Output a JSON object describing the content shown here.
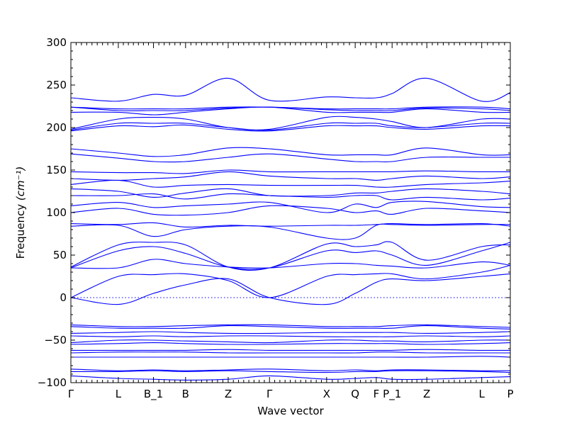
{
  "chart_data": {
    "type": "line",
    "title": "",
    "xlabel": "Wave vector",
    "ylabel": "Frequency ",
    "ylabel_unit": "(cm⁻¹)",
    "ylim": [
      -100,
      300
    ],
    "yticks": [
      -100,
      -50,
      0,
      50,
      100,
      150,
      200,
      250,
      300
    ],
    "ytick_labels": [
      "−100",
      "−50",
      "0",
      "50",
      "100",
      "150",
      "200",
      "250",
      "300"
    ],
    "xlim": [
      0,
      1
    ],
    "high_symmetry_points": [
      {
        "label": "Γ",
        "x": 0.0
      },
      {
        "label": "L",
        "x": 0.108
      },
      {
        "label": "B_1",
        "x": 0.188
      },
      {
        "label": "B",
        "x": 0.261
      },
      {
        "label": "Z",
        "x": 0.358
      },
      {
        "label": "Γ",
        "x": 0.452
      },
      {
        "label": "X",
        "x": 0.582
      },
      {
        "label": "Q",
        "x": 0.647
      },
      {
        "label": "F",
        "x": 0.695
      },
      {
        "label": "P_1",
        "x": 0.731
      },
      {
        "label": "Z",
        "x": 0.81
      },
      {
        "label": "L",
        "x": 0.935
      },
      {
        "label": "P",
        "x": 1.0
      }
    ],
    "zero_line": 0,
    "series_color": "#0000ff",
    "series": [
      {
        "x": [
          0,
          0.108,
          0.188,
          0.261,
          0.358,
          0.452,
          0.582,
          0.647,
          0.695,
          0.731,
          0.81,
          0.935,
          1.0
        ],
        "values": [
          0,
          -8,
          5,
          15,
          22,
          0,
          -8,
          5,
          18,
          22,
          20,
          25,
          28
        ]
      },
      {
        "x": [
          0,
          0.108,
          0.188,
          0.261,
          0.358,
          0.452,
          0.582,
          0.647,
          0.695,
          0.731,
          0.81,
          0.935,
          1.0
        ],
        "values": [
          0,
          25,
          27,
          28,
          20,
          0,
          25,
          27,
          28,
          28,
          22,
          30,
          38
        ]
      },
      {
        "x": [
          0,
          0.108,
          0.188,
          0.261,
          0.358,
          0.452,
          0.582,
          0.647,
          0.695,
          0.731,
          0.81,
          0.935,
          1.0
        ],
        "values": [
          35,
          35,
          45,
          40,
          36,
          35,
          40,
          40,
          38,
          37,
          35,
          42,
          38
        ]
      },
      {
        "x": [
          0,
          0.108,
          0.188,
          0.261,
          0.358,
          0.452,
          0.582,
          0.647,
          0.695,
          0.731,
          0.81,
          0.935,
          1.0
        ],
        "values": [
          35,
          55,
          60,
          52,
          36,
          35,
          55,
          53,
          55,
          50,
          38,
          55,
          65
        ]
      },
      {
        "x": [
          0,
          0.108,
          0.188,
          0.261,
          0.358,
          0.452,
          0.582,
          0.647,
          0.695,
          0.731,
          0.81,
          0.935,
          1.0
        ],
        "values": [
          36,
          62,
          65,
          62,
          36,
          35,
          63,
          60,
          62,
          65,
          44,
          60,
          62
        ]
      },
      {
        "x": [
          0,
          0.108,
          0.188,
          0.261,
          0.358,
          0.452,
          0.582,
          0.647,
          0.695,
          0.731,
          0.81,
          0.935,
          1.0
        ],
        "values": [
          84,
          85,
          72,
          80,
          84,
          83,
          70,
          70,
          85,
          86,
          85,
          86,
          86
        ]
      },
      {
        "x": [
          0,
          0.108,
          0.188,
          0.261,
          0.358,
          0.452,
          0.582,
          0.647,
          0.695,
          0.731,
          0.81,
          0.935,
          1.0
        ],
        "values": [
          87,
          86,
          88,
          83,
          85,
          84,
          85,
          85,
          86,
          87,
          86,
          87,
          84
        ]
      },
      {
        "x": [
          0,
          0.108,
          0.188,
          0.261,
          0.358,
          0.452,
          0.582,
          0.647,
          0.695,
          0.731,
          0.81,
          0.935,
          1.0
        ],
        "values": [
          100,
          105,
          98,
          97,
          100,
          108,
          105,
          100,
          102,
          98,
          105,
          102,
          100
        ]
      },
      {
        "x": [
          0,
          0.108,
          0.188,
          0.261,
          0.358,
          0.452,
          0.582,
          0.647,
          0.695,
          0.731,
          0.81,
          0.935,
          1.0
        ],
        "values": [
          108,
          112,
          106,
          108,
          110,
          112,
          100,
          110,
          106,
          112,
          113,
          107,
          106
        ]
      },
      {
        "x": [
          0,
          0.108,
          0.188,
          0.261,
          0.358,
          0.452,
          0.582,
          0.647,
          0.695,
          0.731,
          0.81,
          0.935,
          1.0
        ],
        "values": [
          120,
          120,
          122,
          116,
          122,
          120,
          118,
          120,
          120,
          115,
          118,
          115,
          117
        ]
      },
      {
        "x": [
          0,
          0.108,
          0.188,
          0.261,
          0.358,
          0.452,
          0.582,
          0.647,
          0.695,
          0.731,
          0.81,
          0.935,
          1.0
        ],
        "values": [
          128,
          125,
          118,
          123,
          128,
          120,
          120,
          123,
          123,
          125,
          128,
          125,
          122
        ]
      },
      {
        "x": [
          0,
          0.108,
          0.188,
          0.261,
          0.358,
          0.452,
          0.582,
          0.647,
          0.695,
          0.731,
          0.81,
          0.935,
          1.0
        ],
        "values": [
          133,
          138,
          130,
          132,
          133,
          132,
          132,
          132,
          130,
          130,
          133,
          135,
          137
        ]
      },
      {
        "x": [
          0,
          0.108,
          0.188,
          0.261,
          0.358,
          0.452,
          0.582,
          0.647,
          0.695,
          0.731,
          0.81,
          0.935,
          1.0
        ],
        "values": [
          140,
          138,
          140,
          142,
          148,
          143,
          140,
          140,
          138,
          140,
          143,
          140,
          142
        ]
      },
      {
        "x": [
          0,
          0.108,
          0.188,
          0.261,
          0.358,
          0.452,
          0.582,
          0.647,
          0.695,
          0.731,
          0.81,
          0.935,
          1.0
        ],
        "values": [
          148,
          147,
          147,
          146,
          150,
          148,
          148,
          148,
          148,
          148,
          149,
          148,
          148
        ]
      },
      {
        "x": [
          0,
          0.108,
          0.188,
          0.261,
          0.358,
          0.452,
          0.582,
          0.647,
          0.695,
          0.731,
          0.81,
          0.935,
          1.0
        ],
        "values": [
          169,
          164,
          160,
          160,
          165,
          169,
          163,
          160,
          160,
          160,
          165,
          165,
          165
        ]
      },
      {
        "x": [
          0,
          0.108,
          0.188,
          0.261,
          0.358,
          0.452,
          0.582,
          0.647,
          0.695,
          0.731,
          0.81,
          0.935,
          1.0
        ],
        "values": [
          175,
          170,
          166,
          168,
          176,
          175,
          168,
          168,
          168,
          168,
          176,
          168,
          168
        ]
      },
      {
        "x": [
          0,
          0.108,
          0.188,
          0.261,
          0.358,
          0.452,
          0.582,
          0.647,
          0.695,
          0.731,
          0.81,
          0.935,
          1.0
        ],
        "values": [
          196,
          202,
          201,
          203,
          198,
          196,
          202,
          202,
          202,
          200,
          198,
          202,
          202
        ]
      },
      {
        "x": [
          0,
          0.108,
          0.188,
          0.261,
          0.358,
          0.452,
          0.582,
          0.647,
          0.695,
          0.731,
          0.81,
          0.935,
          1.0
        ],
        "values": [
          197,
          205,
          205,
          205,
          200,
          197,
          205,
          205,
          205,
          202,
          200,
          205,
          205
        ]
      },
      {
        "x": [
          0,
          0.108,
          0.188,
          0.261,
          0.358,
          0.452,
          0.582,
          0.647,
          0.695,
          0.731,
          0.81,
          0.935,
          1.0
        ],
        "values": [
          198,
          210,
          212,
          210,
          200,
          198,
          212,
          212,
          210,
          207,
          200,
          210,
          210
        ]
      },
      {
        "x": [
          0,
          0.108,
          0.188,
          0.261,
          0.358,
          0.452,
          0.582,
          0.647,
          0.695,
          0.731,
          0.81,
          0.935,
          1.0
        ],
        "values": [
          218,
          218,
          215,
          218,
          222,
          224,
          218,
          218,
          218,
          218,
          222,
          218,
          218
        ]
      },
      {
        "x": [
          0,
          0.108,
          0.188,
          0.261,
          0.358,
          0.452,
          0.582,
          0.647,
          0.695,
          0.731,
          0.81,
          0.935,
          1.0
        ],
        "values": [
          224,
          220,
          220,
          220,
          223,
          224,
          221,
          220,
          220,
          220,
          223,
          222,
          220
        ]
      },
      {
        "x": [
          0,
          0.108,
          0.188,
          0.261,
          0.358,
          0.452,
          0.582,
          0.647,
          0.695,
          0.731,
          0.81,
          0.935,
          1.0
        ],
        "values": [
          224,
          222,
          222,
          222,
          224,
          224,
          222,
          222,
          222,
          222,
          224,
          224,
          222
        ]
      },
      {
        "x": [
          0,
          0.108,
          0.188,
          0.261,
          0.358,
          0.452,
          0.582,
          0.647,
          0.695,
          0.731,
          0.81,
          0.935,
          1.0
        ],
        "values": [
          235,
          231,
          239,
          238,
          258,
          232,
          236,
          235,
          235,
          240,
          258,
          231,
          241
        ]
      },
      {
        "x": [
          0,
          0.108,
          0.188,
          0.261,
          0.358,
          0.452,
          0.582,
          0.647,
          0.695,
          0.731,
          0.81,
          0.935,
          1.0
        ],
        "values": [
          -32,
          -34,
          -34,
          -33,
          -32,
          -32,
          -34,
          -34,
          -34,
          -33,
          -32,
          -34,
          -35
        ]
      },
      {
        "x": [
          0,
          0.108,
          0.188,
          0.261,
          0.358,
          0.452,
          0.582,
          0.647,
          0.695,
          0.731,
          0.81,
          0.935,
          1.0
        ],
        "values": [
          -34,
          -36,
          -36,
          -36,
          -33,
          -34,
          -36,
          -36,
          -36,
          -36,
          -33,
          -36,
          -37
        ]
      },
      {
        "x": [
          0,
          0.108,
          0.188,
          0.261,
          0.358,
          0.452,
          0.582,
          0.647,
          0.695,
          0.731,
          0.81,
          0.935,
          1.0
        ],
        "values": [
          -42,
          -41,
          -40,
          -41,
          -42,
          -42,
          -41,
          -41,
          -41,
          -41,
          -42,
          -41,
          -40
        ]
      },
      {
        "x": [
          0,
          0.108,
          0.188,
          0.261,
          0.358,
          0.452,
          0.582,
          0.647,
          0.695,
          0.731,
          0.81,
          0.935,
          1.0
        ],
        "values": [
          -45,
          -46,
          -45,
          -46,
          -45,
          -45,
          -46,
          -46,
          -46,
          -46,
          -45,
          -46,
          -45
        ]
      },
      {
        "x": [
          0,
          0.108,
          0.188,
          0.261,
          0.358,
          0.452,
          0.582,
          0.647,
          0.695,
          0.731,
          0.81,
          0.935,
          1.0
        ],
        "values": [
          -53,
          -50,
          -50,
          -51,
          -52,
          -53,
          -50,
          -50,
          -51,
          -51,
          -52,
          -50,
          -50
        ]
      },
      {
        "x": [
          0,
          0.108,
          0.188,
          0.261,
          0.358,
          0.452,
          0.582,
          0.647,
          0.695,
          0.731,
          0.81,
          0.935,
          1.0
        ],
        "values": [
          -55,
          -54,
          -53,
          -54,
          -55,
          -55,
          -54,
          -54,
          -54,
          -54,
          -55,
          -54,
          -53
        ]
      },
      {
        "x": [
          0,
          0.108,
          0.188,
          0.261,
          0.358,
          0.452,
          0.582,
          0.647,
          0.695,
          0.731,
          0.81,
          0.935,
          1.0
        ],
        "values": [
          -62,
          -62,
          -62,
          -62,
          -61,
          -62,
          -62,
          -62,
          -62,
          -62,
          -61,
          -62,
          -62
        ]
      },
      {
        "x": [
          0,
          0.108,
          0.188,
          0.261,
          0.358,
          0.452,
          0.582,
          0.647,
          0.695,
          0.731,
          0.81,
          0.935,
          1.0
        ],
        "values": [
          -65,
          -64,
          -64,
          -64,
          -65,
          -65,
          -65,
          -65,
          -64,
          -64,
          -65,
          -65,
          -65
        ]
      },
      {
        "x": [
          0,
          0.108,
          0.188,
          0.261,
          0.358,
          0.452,
          0.582,
          0.647,
          0.695,
          0.731,
          0.81,
          0.935,
          1.0
        ],
        "values": [
          -70,
          -70,
          -70,
          -70,
          -70,
          -70,
          -70,
          -70,
          -70,
          -70,
          -70,
          -69,
          -70
        ]
      },
      {
        "x": [
          0,
          0.108,
          0.188,
          0.261,
          0.358,
          0.452,
          0.582,
          0.647,
          0.695,
          0.731,
          0.81,
          0.935,
          1.0
        ],
        "values": [
          -84,
          -86,
          -85,
          -86,
          -85,
          -84,
          -86,
          -85,
          -86,
          -85,
          -85,
          -86,
          -86
        ]
      },
      {
        "x": [
          0,
          0.108,
          0.188,
          0.261,
          0.358,
          0.452,
          0.582,
          0.647,
          0.695,
          0.731,
          0.81,
          0.935,
          1.0
        ],
        "values": [
          -87,
          -87,
          -86,
          -87,
          -86,
          -87,
          -88,
          -87,
          -87,
          -86,
          -86,
          -87,
          -88
        ]
      },
      {
        "x": [
          0,
          0.108,
          0.188,
          0.261,
          0.358,
          0.452,
          0.582,
          0.647,
          0.695,
          0.731,
          0.81,
          0.935,
          1.0
        ],
        "values": [
          -92,
          -95,
          -96,
          -97,
          -96,
          -92,
          -96,
          -95,
          -94,
          -96,
          -96,
          -94,
          -93
        ]
      }
    ],
    "grid": false,
    "legend": "none"
  }
}
